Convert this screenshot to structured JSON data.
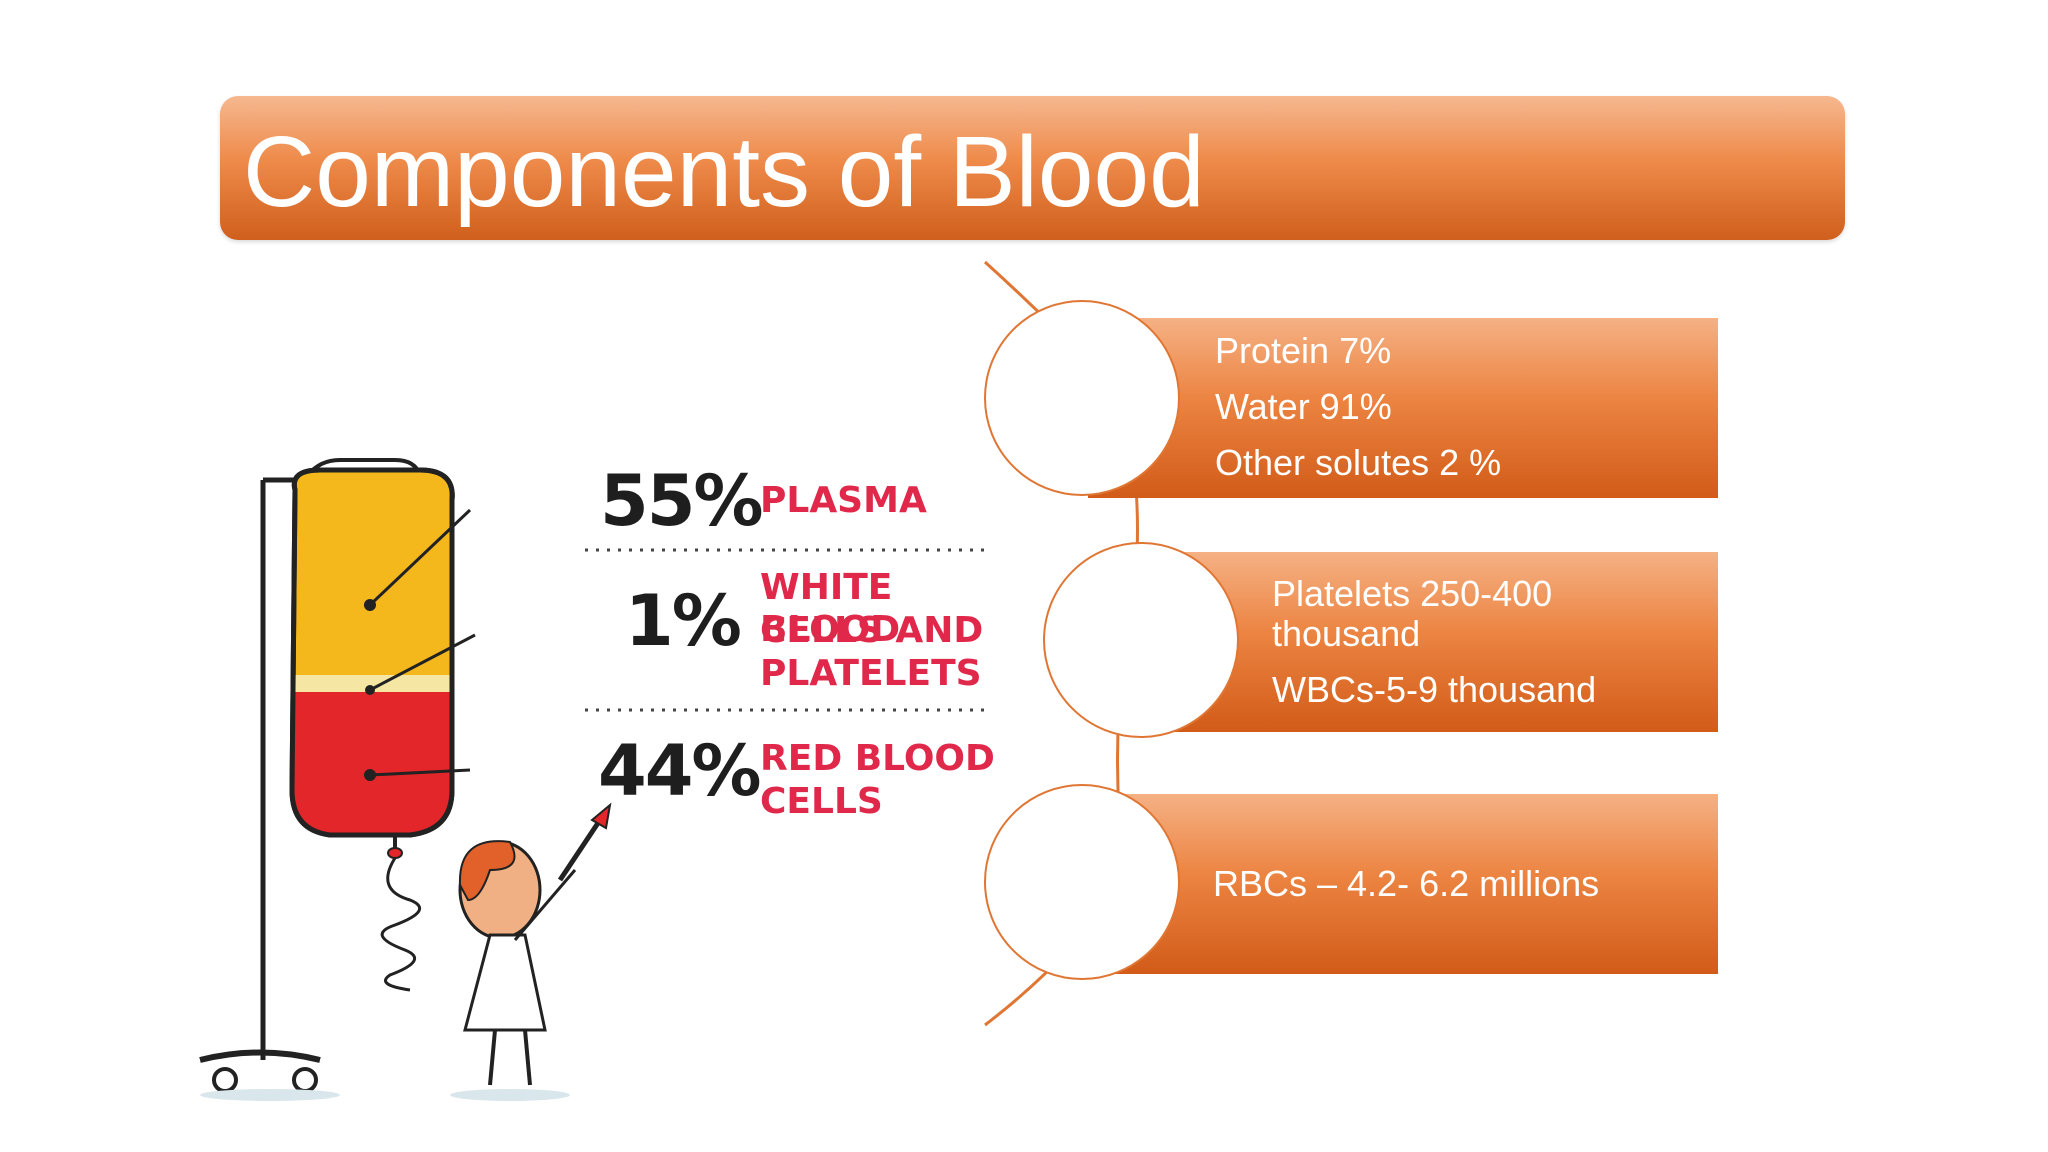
{
  "slide": {
    "title": "Components of Blood"
  },
  "illustration": {
    "plasma_pct": "55%",
    "plasma_label": "PLASMA",
    "wbc_pct": "1%",
    "wbc_label_1": "WHITE BLOOD",
    "wbc_label_2": "CELLS AND",
    "wbc_label_3": "PLATELETS",
    "rbc_pct": "44%",
    "rbc_label_1": "RED BLOOD",
    "rbc_label_2": "CELLS"
  },
  "components": [
    {
      "lines": [
        "Protein 7%",
        "Water 91%",
        "Other solutes 2 %"
      ]
    },
    {
      "lines": [
        "Platelets 250-400",
        "thousand",
        "WBCs-5-9 thousand"
      ]
    },
    {
      "lines": [
        "RBCs – 4.2- 6.2 millions"
      ]
    }
  ],
  "colors": {
    "accent_orange": "#e07634",
    "plasma_yellow": "#f4b81c",
    "rbc_red": "#e2262a",
    "label_red": "#e0294a"
  }
}
